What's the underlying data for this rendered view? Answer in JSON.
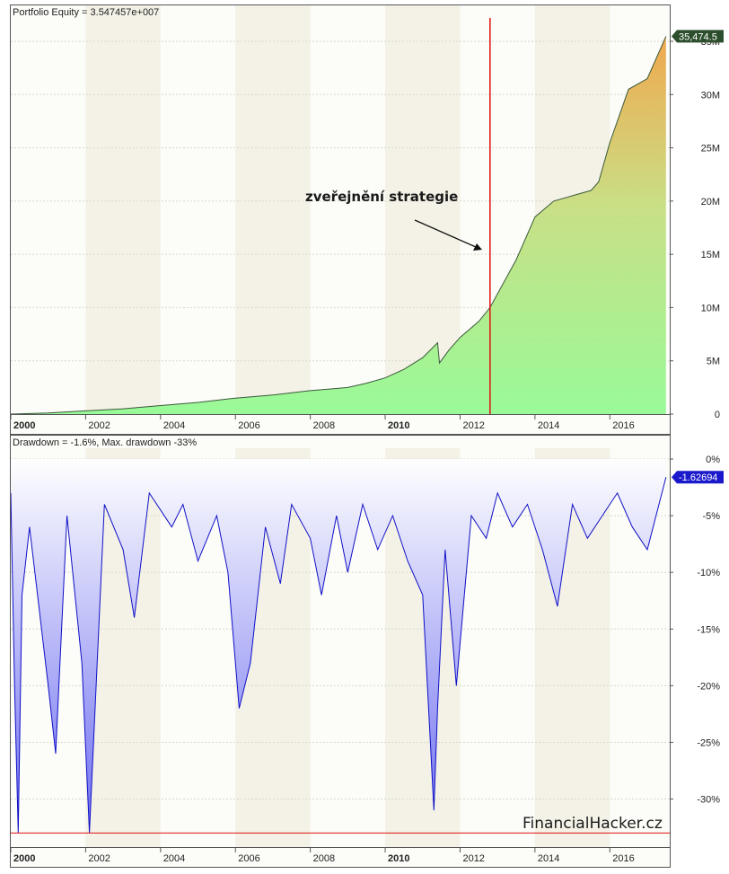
{
  "chart_data": [
    {
      "type": "area",
      "title": "Portfolio Equity = 3.547457e+007",
      "series": [
        {
          "name": "",
          "x": [
            2000.0,
            2001.0,
            2002.0,
            2003.0,
            2004.0,
            2005.0,
            2006.0,
            2007.0,
            2008.0,
            2009.0,
            2009.5,
            2010.0,
            2010.5,
            2011.0,
            2011.4,
            2011.45,
            2011.7,
            2012.0,
            2012.5,
            2012.8,
            2013.0,
            2013.5,
            2014.0,
            2014.5,
            2015.0,
            2015.5,
            2015.7,
            2016.0,
            2016.5,
            2017.0,
            2017.5
          ],
          "values": [
            0.0,
            0.1,
            0.3,
            0.5,
            0.8,
            1.1,
            1.5,
            1.8,
            2.2,
            2.5,
            2.9,
            3.4,
            4.2,
            5.3,
            6.7,
            4.8,
            6.0,
            7.2,
            8.7,
            10.0,
            11.3,
            14.5,
            18.5,
            20.0,
            20.5,
            21.0,
            21.8,
            25.5,
            30.5,
            31.5,
            35.47
          ]
        }
      ],
      "xlim": [
        2000.0,
        2017.6
      ],
      "ylim": [
        0,
        36
      ],
      "y_unit": "M",
      "x_ticks": [
        "2000",
        "2002",
        "2004",
        "2006",
        "2008",
        "2010",
        "2012",
        "2014",
        "2016"
      ],
      "x_ticks_bold": [
        "2000",
        "2010"
      ],
      "y_ticks": [
        "0",
        "5M",
        "10M",
        "15M",
        "20M",
        "25M",
        "30M",
        "35M"
      ],
      "y_tick_values": [
        0,
        5,
        10,
        15,
        20,
        25,
        30,
        35
      ],
      "last_value_label": "35,474.5",
      "annotation": {
        "text": "zveřejnění strategie",
        "x": 2012.8
      },
      "grid": true,
      "colors": {
        "line": "#3a5a3a",
        "fill_low": "#99fa99",
        "fill_high": "#f0a84e",
        "marker": "#e01010",
        "badge": "#2d4e2d"
      }
    },
    {
      "type": "area",
      "title": "Drawdown = -1.6%, Max. drawdown -33%",
      "series": [
        {
          "name": "",
          "x": [
            2000.0,
            2000.1,
            2000.2,
            2000.3,
            2000.5,
            2001.0,
            2001.2,
            2001.5,
            2001.9,
            2002.1,
            2002.5,
            2003.0,
            2003.3,
            2003.7,
            2004.3,
            2004.6,
            2005.0,
            2005.5,
            2005.8,
            2006.1,
            2006.4,
            2006.8,
            2007.2,
            2007.5,
            2008.0,
            2008.3,
            2008.7,
            2009.0,
            2009.4,
            2009.8,
            2010.2,
            2010.6,
            2011.0,
            2011.3,
            2011.4,
            2011.6,
            2011.9,
            2012.3,
            2012.7,
            2013.0,
            2013.4,
            2013.8,
            2014.2,
            2014.6,
            2015.0,
            2015.4,
            2015.8,
            2016.2,
            2016.6,
            2017.0,
            2017.5
          ],
          "values": [
            -3,
            -20,
            -33,
            -12,
            -6,
            -20,
            -26,
            -5,
            -18,
            -33,
            -4,
            -8,
            -14,
            -3,
            -6,
            -4,
            -9,
            -5,
            -10,
            -22,
            -18,
            -6,
            -11,
            -4,
            -7,
            -12,
            -5,
            -10,
            -4,
            -8,
            -5,
            -9,
            -12,
            -31,
            -22,
            -8,
            -20,
            -5,
            -7,
            -3,
            -6,
            -4,
            -8,
            -13,
            -4,
            -7,
            -5,
            -3,
            -6,
            -8,
            -1.6
          ]
        }
      ],
      "xlim": [
        2000.0,
        2017.6
      ],
      "ylim": [
        -34,
        1
      ],
      "x_ticks": [
        "2000",
        "2002",
        "2004",
        "2006",
        "2008",
        "2010",
        "2012",
        "2014",
        "2016"
      ],
      "x_ticks_bold": [
        "2000",
        "2010"
      ],
      "y_ticks": [
        "0%",
        "-5%",
        "-10%",
        "-15%",
        "-20%",
        "-25%",
        "-30%"
      ],
      "y_tick_values": [
        0,
        -5,
        -10,
        -15,
        -20,
        -25,
        -30
      ],
      "max_drawdown": -33,
      "last_value_label": "-1.62694",
      "grid": true,
      "colors": {
        "line": "#1010c8",
        "fill_top": "#ffffff",
        "fill_bottom": "#6e6ef0",
        "maxline": "#e01010",
        "badge": "#1a1acc"
      }
    }
  ],
  "watermark": "FinancialHacker.cz"
}
